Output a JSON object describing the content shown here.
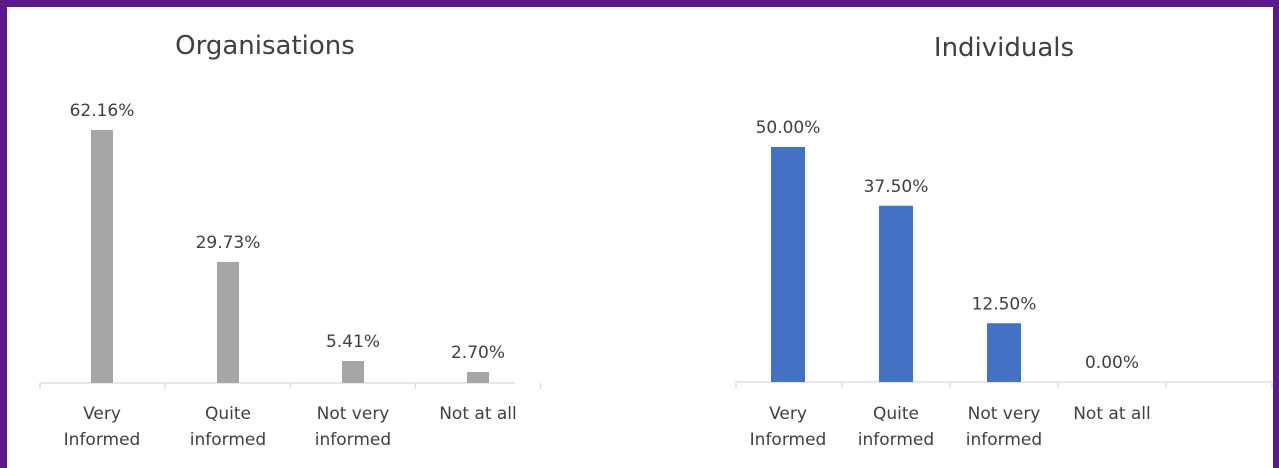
{
  "colors": {
    "frame": "#5b1a8c"
  },
  "chart_data": [
    {
      "type": "bar",
      "title": "Organisations",
      "categories": [
        [
          "Very",
          "Informed"
        ],
        [
          "Quite",
          "informed"
        ],
        [
          "Not very",
          "informed"
        ],
        [
          "Not at all"
        ]
      ],
      "values": [
        62.16,
        29.73,
        5.41,
        2.7
      ],
      "data_labels": [
        "62.16%",
        "29.73%",
        "5.41%",
        "2.70%"
      ],
      "color": "#a6a6a6",
      "xlabel": "",
      "ylabel": "",
      "ylim": [
        0,
        62.16
      ],
      "grid": false
    },
    {
      "type": "bar",
      "title": "Individuals",
      "categories": [
        [
          "Very",
          "Informed"
        ],
        [
          "Quite",
          "informed"
        ],
        [
          "Not very",
          "informed"
        ],
        [
          "Not at all"
        ]
      ],
      "values": [
        50.0,
        37.5,
        12.5,
        0.0
      ],
      "data_labels": [
        "50.00%",
        "37.50%",
        "12.50%",
        "0.00%"
      ],
      "color": "#4472c4",
      "xlabel": "",
      "ylabel": "",
      "ylim": [
        0,
        50
      ],
      "grid": false
    }
  ]
}
